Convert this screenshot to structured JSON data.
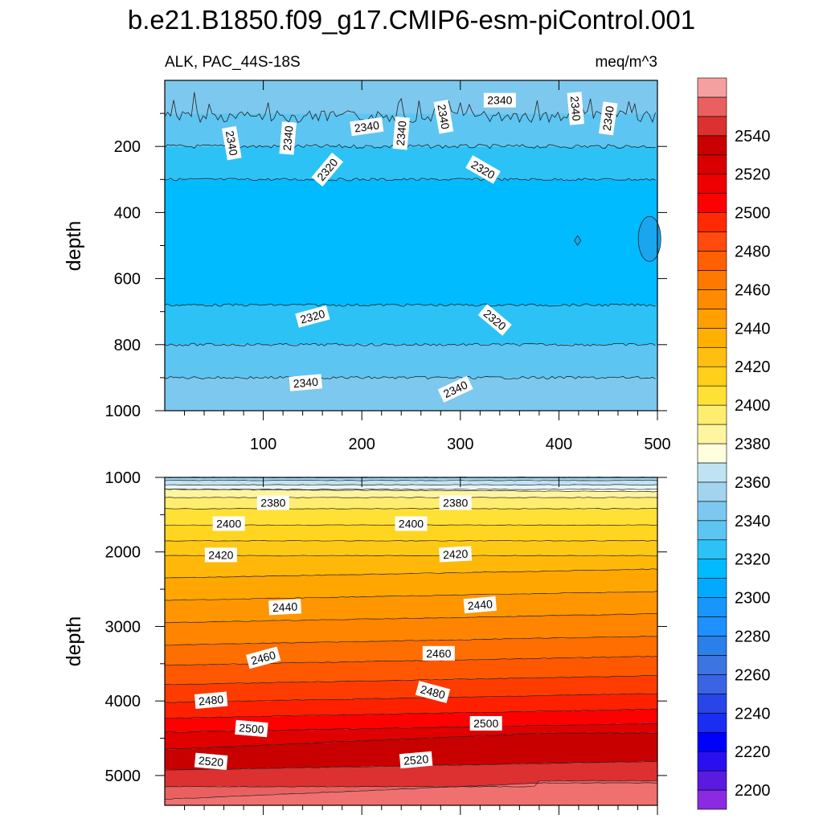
{
  "title": "b.e21.B1850.f09_g17.CMIP6-esm-piControl.001",
  "chart_data": [
    {
      "type": "contour",
      "name": "upper-panel",
      "left_label": "ALK, PAC_44S-18S",
      "right_label": "meq/m^3",
      "xlim": [
        0,
        500
      ],
      "ylim": [
        1000,
        0
      ],
      "xticks": [
        "100",
        "200",
        "300",
        "400",
        "500"
      ],
      "yticks": [
        "200",
        "400",
        "600",
        "800",
        "1000"
      ],
      "ylabel": "depth",
      "bands": [
        {
          "top": 0,
          "bottom": 100,
          "value": 2345
        },
        {
          "top": 100,
          "bottom": 200,
          "value": 2335
        },
        {
          "top": 200,
          "bottom": 300,
          "value": 2325
        },
        {
          "top": 300,
          "bottom": 680,
          "value": 2315
        },
        {
          "top": 680,
          "bottom": 800,
          "value": 2325
        },
        {
          "top": 800,
          "bottom": 900,
          "value": 2335
        },
        {
          "top": 900,
          "bottom": 1000,
          "value": 2345
        }
      ],
      "contour_labels": [
        {
          "text": "2340",
          "x": 340,
          "y": 60,
          "rot": 0
        },
        {
          "text": "2340",
          "x": 68,
          "y": 190,
          "rot": 80
        },
        {
          "text": "2340",
          "x": 125,
          "y": 175,
          "rot": -85
        },
        {
          "text": "2340",
          "x": 205,
          "y": 140,
          "rot": -8
        },
        {
          "text": "2340",
          "x": 240,
          "y": 160,
          "rot": -85
        },
        {
          "text": "2340",
          "x": 283,
          "y": 110,
          "rot": 80
        },
        {
          "text": "2340",
          "x": 417,
          "y": 85,
          "rot": 85
        },
        {
          "text": "2340",
          "x": 450,
          "y": 115,
          "rot": -82
        },
        {
          "text": "2320",
          "x": 165,
          "y": 270,
          "rot": -50
        },
        {
          "text": "2320",
          "x": 323,
          "y": 270,
          "rot": 30
        },
        {
          "text": "2320",
          "x": 150,
          "y": 715,
          "rot": -15
        },
        {
          "text": "2320",
          "x": 335,
          "y": 725,
          "rot": 40
        },
        {
          "text": "2340",
          "x": 143,
          "y": 915,
          "rot": -5
        },
        {
          "text": "2340",
          "x": 295,
          "y": 935,
          "rot": -25
        }
      ]
    },
    {
      "type": "contour",
      "name": "lower-panel",
      "xlim": [
        0,
        500
      ],
      "ylim": [
        5400,
        1000
      ],
      "yticks": [
        "1000",
        "2000",
        "3000",
        "4000",
        "5000"
      ],
      "ylabel": "depth",
      "contour_labels": [
        {
          "text": "2380",
          "x": 110,
          "y": 1340,
          "rot": 0
        },
        {
          "text": "2380",
          "x": 295,
          "y": 1340,
          "rot": 0
        },
        {
          "text": "2400",
          "x": 65,
          "y": 1620,
          "rot": 0
        },
        {
          "text": "2400",
          "x": 250,
          "y": 1620,
          "rot": 0
        },
        {
          "text": "2420",
          "x": 57,
          "y": 2040,
          "rot": 0
        },
        {
          "text": "2420",
          "x": 295,
          "y": 2030,
          "rot": -3
        },
        {
          "text": "2440",
          "x": 122,
          "y": 2740,
          "rot": -3
        },
        {
          "text": "2440",
          "x": 320,
          "y": 2710,
          "rot": -5
        },
        {
          "text": "2460",
          "x": 100,
          "y": 3420,
          "rot": -15
        },
        {
          "text": "2460",
          "x": 278,
          "y": 3360,
          "rot": 0
        },
        {
          "text": "2480",
          "x": 47,
          "y": 3990,
          "rot": -5
        },
        {
          "text": "2480",
          "x": 272,
          "y": 3880,
          "rot": 15
        },
        {
          "text": "2500",
          "x": 88,
          "y": 4370,
          "rot": 5
        },
        {
          "text": "2500",
          "x": 326,
          "y": 4300,
          "rot": 0
        },
        {
          "text": "2520",
          "x": 47,
          "y": 4810,
          "rot": 5
        },
        {
          "text": "2520",
          "x": 255,
          "y": 4790,
          "rot": -5
        }
      ]
    }
  ],
  "colorbar": {
    "levels": [
      2200,
      2210,
      2220,
      2230,
      2240,
      2250,
      2260,
      2270,
      2280,
      2290,
      2300,
      2310,
      2320,
      2330,
      2340,
      2350,
      2360,
      2370,
      2380,
      2390,
      2400,
      2410,
      2420,
      2430,
      2440,
      2450,
      2460,
      2470,
      2480,
      2490,
      2500,
      2510,
      2520,
      2530,
      2540,
      2550
    ],
    "colors": [
      "#8a2be2",
      "#5a1ae0",
      "#2a10f0",
      "#0000ff",
      "#1a2ef2",
      "#2846e8",
      "#3a64e4",
      "#3c74e2",
      "#2a80ea",
      "#1e90ff",
      "#1896fb",
      "#00aaff",
      "#00bbff",
      "#2cc2f6",
      "#5dc5f2",
      "#7dc8ee",
      "#a3d4ef",
      "#bfe3f2",
      "#ffffdd",
      "#fff5a0",
      "#ffed70",
      "#ffe135",
      "#ffcf1a",
      "#ffbf10",
      "#ffb000",
      "#ffa000",
      "#ff8c00",
      "#ff7800",
      "#ff6000",
      "#ff4a10",
      "#ff2a00",
      "#ff0000",
      "#ee0000",
      "#d80000",
      "#c80000",
      "#dd3030",
      "#ea6060",
      "#f5a0a0"
    ],
    "labels": [
      "2200",
      "2220",
      "2240",
      "2260",
      "2280",
      "2300",
      "2320",
      "2340",
      "2360",
      "2380",
      "2400",
      "2420",
      "2440",
      "2460",
      "2480",
      "2500",
      "2520",
      "2540"
    ]
  }
}
